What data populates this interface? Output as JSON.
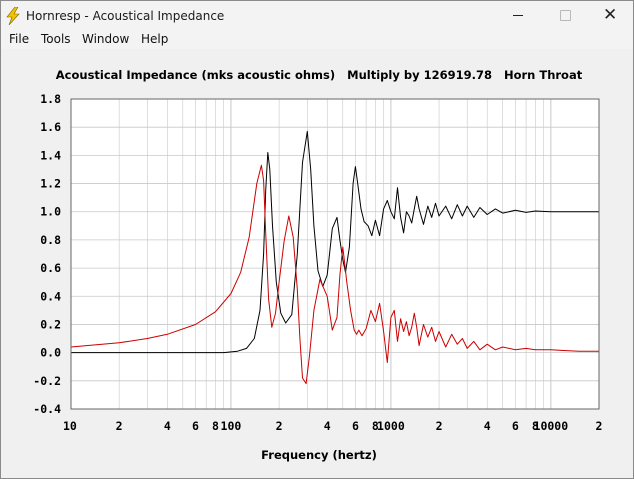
{
  "window": {
    "title": "Hornresp - Acoustical Impedance",
    "icon": "lightning-bolt-icon",
    "controls": {
      "minimize": "minimize-icon",
      "maximize": "maximize-icon",
      "close": "close-icon",
      "close_glyph": "✕"
    }
  },
  "menu": [
    {
      "label": "File"
    },
    {
      "label": "Tools"
    },
    {
      "label": "Window"
    },
    {
      "label": "Help"
    }
  ],
  "colors": {
    "plot_background": "#ffffff",
    "grid": "#c8c8c8",
    "series_black": "#000000",
    "series_red": "#cc0000"
  },
  "chart_data": {
    "type": "line",
    "title": "Acoustical Impedance (mks acoustic ohms)   Multiply by 126919.78   Horn Throat",
    "xlabel": "Frequency (hertz)",
    "ylabel": "",
    "x_scale": "log",
    "xlim": [
      10,
      20000
    ],
    "ylim": [
      -0.4,
      1.8
    ],
    "grid": true,
    "legend": "none",
    "x_ticks": [
      {
        "value": 10,
        "label": "10"
      },
      {
        "value": 20,
        "label": "2"
      },
      {
        "value": 40,
        "label": "4"
      },
      {
        "value": 60,
        "label": "6"
      },
      {
        "value": 80,
        "label": "8"
      },
      {
        "value": 100,
        "label": "100"
      },
      {
        "value": 200,
        "label": "2"
      },
      {
        "value": 400,
        "label": "4"
      },
      {
        "value": 600,
        "label": "6"
      },
      {
        "value": 800,
        "label": "8"
      },
      {
        "value": 1000,
        "label": "1000"
      },
      {
        "value": 2000,
        "label": "2"
      },
      {
        "value": 4000,
        "label": "4"
      },
      {
        "value": 6000,
        "label": "6"
      },
      {
        "value": 8000,
        "label": "8"
      },
      {
        "value": 10000,
        "label": "10000"
      },
      {
        "value": 20000,
        "label": "2"
      }
    ],
    "y_ticks": [
      {
        "value": 1.8,
        "label": "1.8"
      },
      {
        "value": 1.6,
        "label": "1.6"
      },
      {
        "value": 1.4,
        "label": "1.4"
      },
      {
        "value": 1.2,
        "label": "1.2"
      },
      {
        "value": 1.0,
        "label": "1.0"
      },
      {
        "value": 0.8,
        "label": "0.8"
      },
      {
        "value": 0.6,
        "label": "0.6"
      },
      {
        "value": 0.4,
        "label": "0.4"
      },
      {
        "value": 0.2,
        "label": "0.2"
      },
      {
        "value": 0.0,
        "label": "0.0"
      },
      {
        "value": -0.2,
        "label": "-0.2"
      },
      {
        "value": -0.4,
        "label": "-0.4"
      }
    ],
    "series": [
      {
        "color": "#000000",
        "x": [
          10,
          60,
          90,
          110,
          125,
          140,
          152,
          160,
          165,
          170,
          175,
          182,
          192,
          205,
          220,
          240,
          260,
          280,
          300,
          315,
          330,
          350,
          375,
          400,
          430,
          460,
          480,
          500,
          520,
          550,
          580,
          600,
          620,
          650,
          680,
          720,
          760,
          800,
          850,
          900,
          950,
          1000,
          1050,
          1100,
          1150,
          1200,
          1250,
          1300,
          1350,
          1400,
          1450,
          1500,
          1600,
          1700,
          1800,
          1900,
          2000,
          2200,
          2400,
          2600,
          2800,
          3000,
          3300,
          3600,
          4000,
          4500,
          5000,
          6000,
          7000,
          8000,
          10000,
          12000,
          15000,
          20000
        ],
        "y": [
          0.0,
          0.0,
          0.0,
          0.01,
          0.03,
          0.1,
          0.3,
          0.7,
          1.15,
          1.42,
          1.3,
          0.9,
          0.5,
          0.28,
          0.21,
          0.27,
          0.7,
          1.35,
          1.57,
          1.3,
          0.9,
          0.58,
          0.47,
          0.55,
          0.88,
          0.96,
          0.8,
          0.66,
          0.57,
          0.75,
          1.2,
          1.32,
          1.2,
          1.02,
          0.93,
          0.9,
          0.83,
          0.94,
          0.83,
          1.02,
          1.08,
          1.0,
          0.95,
          1.17,
          0.96,
          0.85,
          1.0,
          0.97,
          0.92,
          1.02,
          1.11,
          1.02,
          0.91,
          1.04,
          0.96,
          1.06,
          0.97,
          1.04,
          0.95,
          1.05,
          0.97,
          1.04,
          0.96,
          1.03,
          0.98,
          1.02,
          0.99,
          1.01,
          0.995,
          1.005,
          1.0,
          1.0,
          1.0,
          1.0
        ]
      },
      {
        "color": "#cc0000",
        "x": [
          10,
          20,
          30,
          40,
          60,
          80,
          100,
          115,
          130,
          145,
          155,
          160,
          165,
          172,
          180,
          190,
          200,
          215,
          230,
          245,
          260,
          270,
          280,
          295,
          310,
          330,
          360,
          400,
          430,
          460,
          480,
          500,
          530,
          560,
          590,
          610,
          630,
          660,
          700,
          750,
          800,
          850,
          900,
          950,
          1000,
          1050,
          1100,
          1150,
          1200,
          1250,
          1300,
          1350,
          1400,
          1450,
          1500,
          1600,
          1700,
          1800,
          1900,
          2000,
          2200,
          2400,
          2600,
          2800,
          3000,
          3300,
          3600,
          4000,
          4500,
          5000,
          6000,
          7000,
          8000,
          10000,
          12000,
          15000,
          20000
        ],
        "y": [
          0.04,
          0.07,
          0.1,
          0.13,
          0.2,
          0.29,
          0.42,
          0.57,
          0.82,
          1.2,
          1.33,
          1.22,
          0.85,
          0.38,
          0.18,
          0.28,
          0.5,
          0.79,
          0.97,
          0.82,
          0.45,
          0.1,
          -0.18,
          -0.22,
          -0.02,
          0.3,
          0.52,
          0.4,
          0.16,
          0.25,
          0.55,
          0.75,
          0.5,
          0.3,
          0.16,
          0.13,
          0.16,
          0.12,
          0.17,
          0.3,
          0.22,
          0.35,
          0.15,
          -0.07,
          0.25,
          0.3,
          0.08,
          0.24,
          0.15,
          0.22,
          0.12,
          0.18,
          0.28,
          0.18,
          0.05,
          0.2,
          0.11,
          0.18,
          0.08,
          0.15,
          0.04,
          0.13,
          0.06,
          0.1,
          0.03,
          0.08,
          0.02,
          0.06,
          0.02,
          0.04,
          0.02,
          0.03,
          0.02,
          0.02,
          0.015,
          0.01,
          0.01
        ]
      }
    ]
  }
}
